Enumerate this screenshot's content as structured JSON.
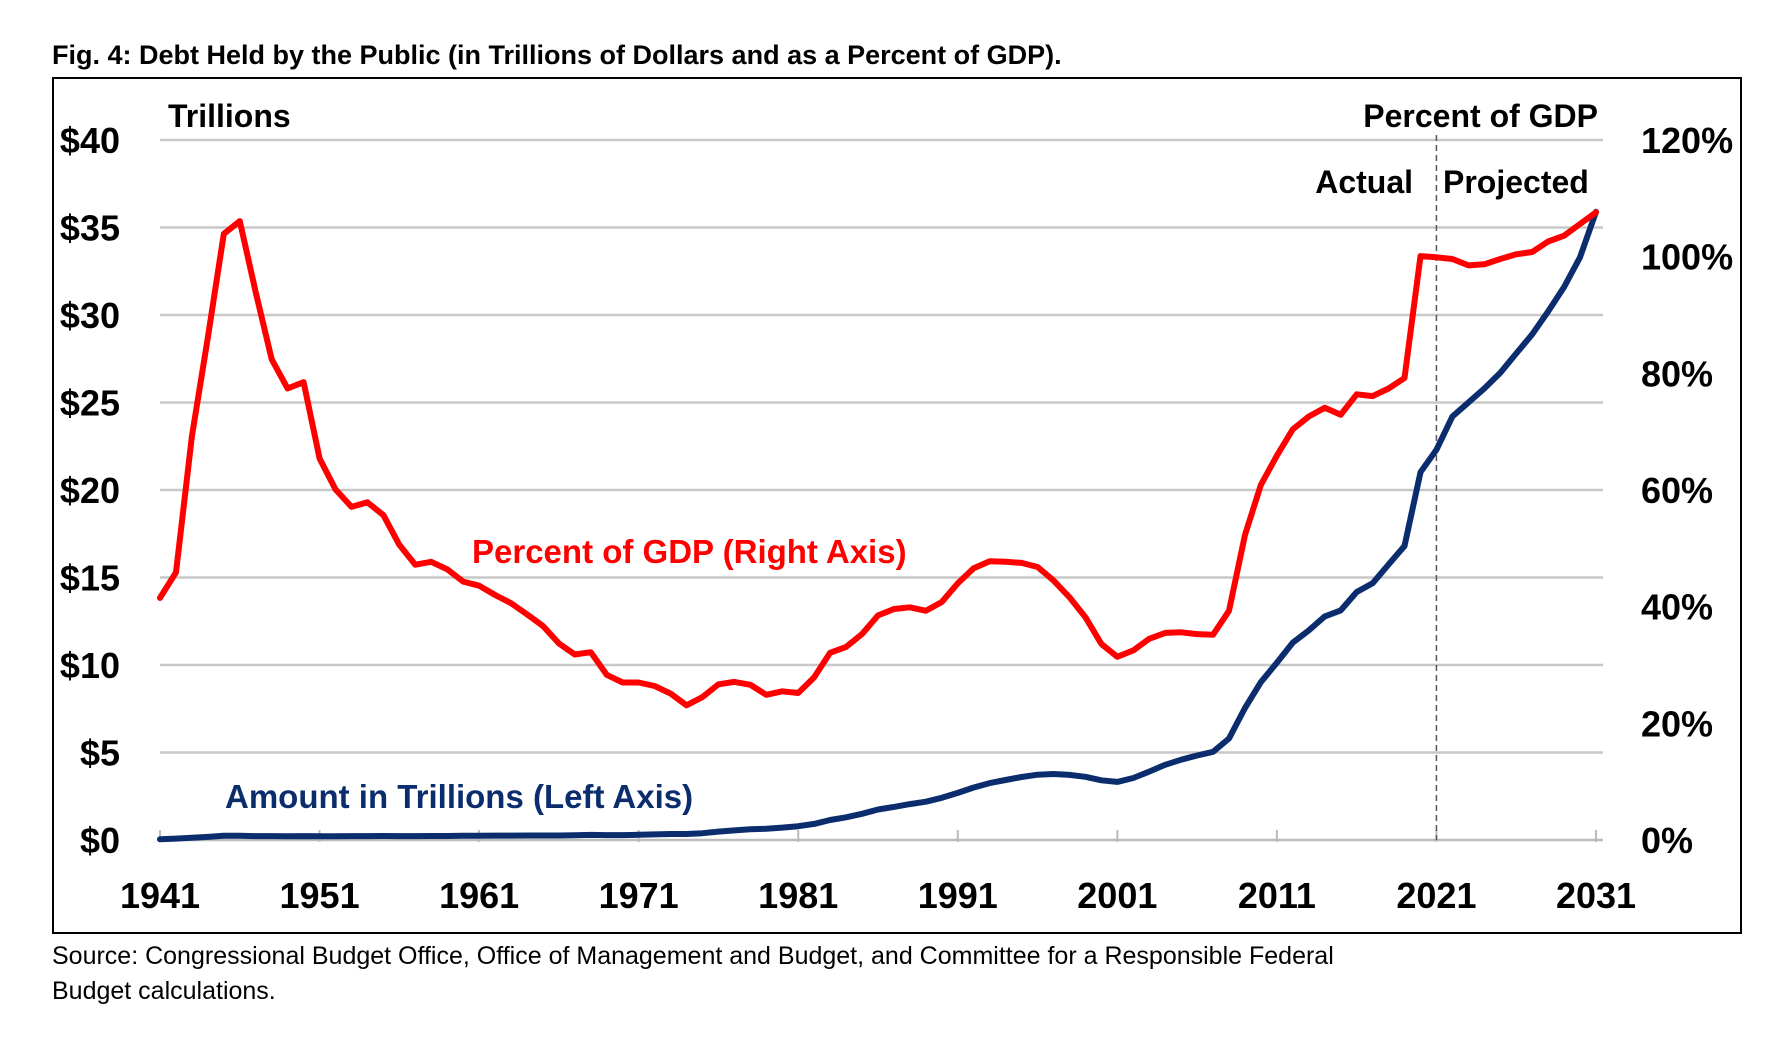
{
  "chart_data": {
    "type": "line",
    "title": "Fig. 4: Debt Held by the Public (in Trillions of Dollars and as a Percent of GDP).",
    "x_start": 1941,
    "x_end": 2031,
    "xlim": [
      1941,
      2031
    ],
    "x_tick_labels": [
      "1941",
      "1951",
      "1961",
      "1971",
      "1981",
      "1991",
      "2001",
      "2011",
      "2021",
      "2031"
    ],
    "left_axis": {
      "label": "Trillions",
      "ylim": [
        0,
        40
      ],
      "tick_labels": [
        "$0",
        "$5",
        "$10",
        "$15",
        "$20",
        "$25",
        "$30",
        "$35",
        "$40"
      ],
      "tick_values": [
        0,
        5,
        10,
        15,
        20,
        25,
        30,
        35,
        40
      ]
    },
    "right_axis": {
      "label": "Percent of GDP",
      "ylim": [
        0,
        120
      ],
      "tick_labels": [
        "0%",
        "20%",
        "40%",
        "60%",
        "80%",
        "100%",
        "120%"
      ],
      "tick_values": [
        0,
        20,
        40,
        60,
        80,
        100,
        120
      ]
    },
    "grid": true,
    "divider": {
      "year": 2021,
      "left_label": "Actual",
      "right_label": "Projected"
    },
    "series": [
      {
        "name": "Percent of GDP (Right Axis)",
        "axis": "right",
        "color": "#ff0000",
        "values": [
          41.5,
          45.9,
          69.2,
          86.2,
          103.9,
          106.1,
          93.9,
          82.4,
          77.4,
          78.5,
          65.4,
          60.1,
          57.1,
          57.9,
          55.7,
          50.6,
          47.2,
          47.7,
          46.4,
          44.3,
          43.6,
          42.0,
          40.6,
          38.7,
          36.7,
          33.7,
          31.8,
          32.2,
          28.3,
          27.0,
          27.0,
          26.4,
          25.1,
          23.1,
          24.5,
          26.7,
          27.1,
          26.6,
          24.9,
          25.5,
          25.2,
          27.9,
          32.1,
          33.1,
          35.3,
          38.5,
          39.6,
          39.9,
          39.3,
          40.8,
          44.0,
          46.6,
          47.8,
          47.7,
          47.5,
          46.8,
          44.5,
          41.6,
          38.2,
          33.6,
          31.4,
          32.5,
          34.5,
          35.5,
          35.6,
          35.3,
          35.2,
          39.3,
          52.3,
          60.9,
          65.9,
          70.4,
          72.6,
          74.1,
          72.9,
          76.4,
          76.1,
          77.4,
          79.2,
          100.1,
          99.9,
          99.6,
          98.5,
          98.7,
          99.6,
          100.4,
          100.8,
          102.6,
          103.6,
          105.6,
          107.6
        ]
      },
      {
        "name": "Amount in Trillions (Left Axis)",
        "axis": "left",
        "color": "#0b2d6e",
        "values": [
          0.04,
          0.08,
          0.13,
          0.18,
          0.24,
          0.24,
          0.22,
          0.22,
          0.21,
          0.22,
          0.21,
          0.21,
          0.22,
          0.22,
          0.23,
          0.22,
          0.22,
          0.23,
          0.23,
          0.24,
          0.24,
          0.25,
          0.25,
          0.26,
          0.26,
          0.26,
          0.27,
          0.29,
          0.28,
          0.28,
          0.3,
          0.32,
          0.34,
          0.34,
          0.39,
          0.48,
          0.55,
          0.61,
          0.64,
          0.71,
          0.79,
          0.92,
          1.14,
          1.3,
          1.5,
          1.74,
          1.89,
          2.05,
          2.19,
          2.41,
          2.69,
          3.0,
          3.25,
          3.43,
          3.6,
          3.73,
          3.77,
          3.72,
          3.61,
          3.41,
          3.32,
          3.54,
          3.91,
          4.3,
          4.59,
          4.83,
          5.04,
          5.8,
          7.54,
          9.02,
          10.13,
          11.28,
          11.98,
          12.78,
          13.12,
          14.17,
          14.67,
          15.75,
          16.8,
          21.02,
          22.3,
          24.2,
          25.0,
          25.8,
          26.7,
          27.8,
          28.9,
          30.2,
          31.6,
          33.3,
          35.9
        ]
      }
    ]
  },
  "source": {
    "line1": "Source: Congressional Budget Office, Office of Management and Budget, and Committee for a Responsible Federal",
    "line2": "Budget calculations."
  }
}
